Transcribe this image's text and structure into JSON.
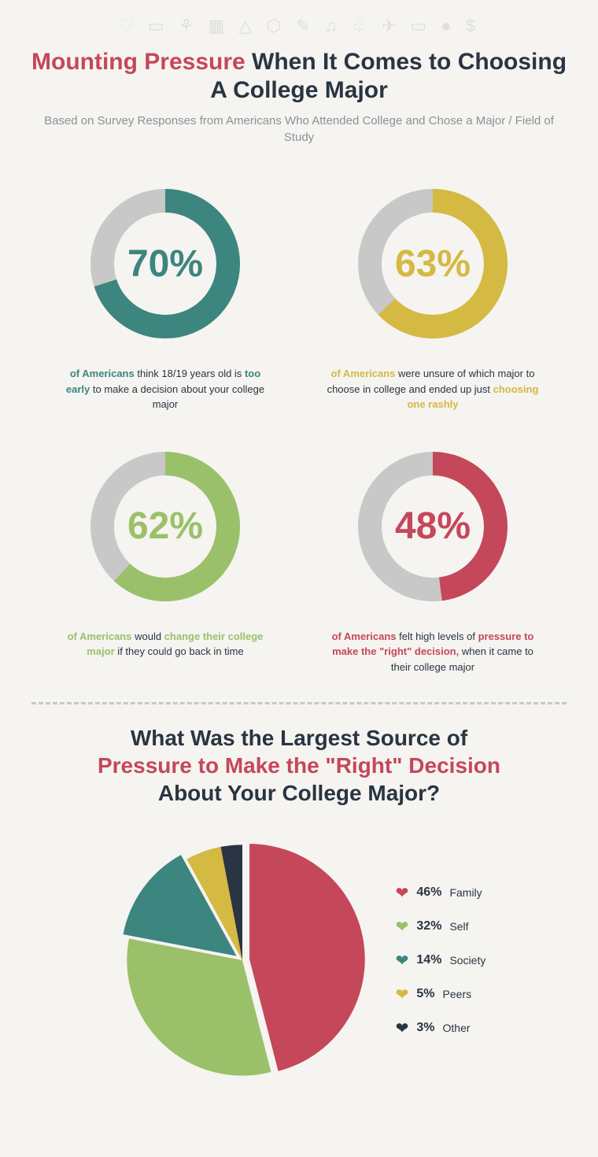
{
  "background_color": "#3a8a8a",
  "page_bg": "#f5f4f0",
  "icon_row": "♡ ▭ ⚘ ▦ △ ⬡ ✎ ♫ ♧ ✈ ▭ ● $",
  "title": {
    "accent": "Mounting Pressure",
    "rest": " When It Comes to Choosing A College Major",
    "accent_color": "#c5475a",
    "text_color": "#2a3442",
    "fontsize": 30
  },
  "subtitle": "Based on Survey Responses from Americans Who Attended College and Chose a Major / Field of Study",
  "donuts": {
    "track_color": "#c8c8c8",
    "ring_width": 30,
    "radius": 115,
    "items": [
      {
        "percent": 70,
        "pct_text": "70%",
        "color": "#3d857f",
        "of_am": "of Americans",
        "text_before": " think 18/19 years old is ",
        "emph": "too early",
        "text_after": " to make a decision about your college major"
      },
      {
        "percent": 63,
        "pct_text": "63%",
        "color": "#d4b943",
        "of_am": "of Americans",
        "text_before": " were unsure of which major to choose in college and ended up just ",
        "emph": "choosing one rashly",
        "text_after": ""
      },
      {
        "percent": 62,
        "pct_text": "62%",
        "color": "#9bc06a",
        "of_am": "of Americans",
        "text_before": " would ",
        "emph": "change their college major",
        "text_after": " if they could go back in time"
      },
      {
        "percent": 48,
        "pct_text": "48%",
        "color": "#c5475a",
        "of_am": "of Americans",
        "text_before": " felt high levels of ",
        "emph": "pressure to make the \"right\" decision,",
        "text_after": " when it came to their college major"
      }
    ]
  },
  "section2": {
    "title_line1": "What Was the Largest Source of",
    "title_accent": "Pressure to Make the \"Right\" Decision",
    "title_line3": "About Your College Major?",
    "pie": {
      "type": "pie",
      "radius": 165,
      "slices": [
        {
          "label": "Family",
          "percent": 46,
          "pct_text": "46%",
          "color": "#c5475a",
          "pulled_out": true
        },
        {
          "label": "Self",
          "percent": 32,
          "pct_text": "32%",
          "color": "#9bc06a",
          "pulled_out": false
        },
        {
          "label": "Society",
          "percent": 14,
          "pct_text": "14%",
          "color": "#3d857f",
          "pulled_out": true
        },
        {
          "label": "Peers",
          "percent": 5,
          "pct_text": "5%",
          "color": "#d4b943",
          "pulled_out": false
        },
        {
          "label": "Other",
          "percent": 3,
          "pct_text": "3%",
          "color": "#2a3442",
          "pulled_out": false
        }
      ]
    }
  }
}
